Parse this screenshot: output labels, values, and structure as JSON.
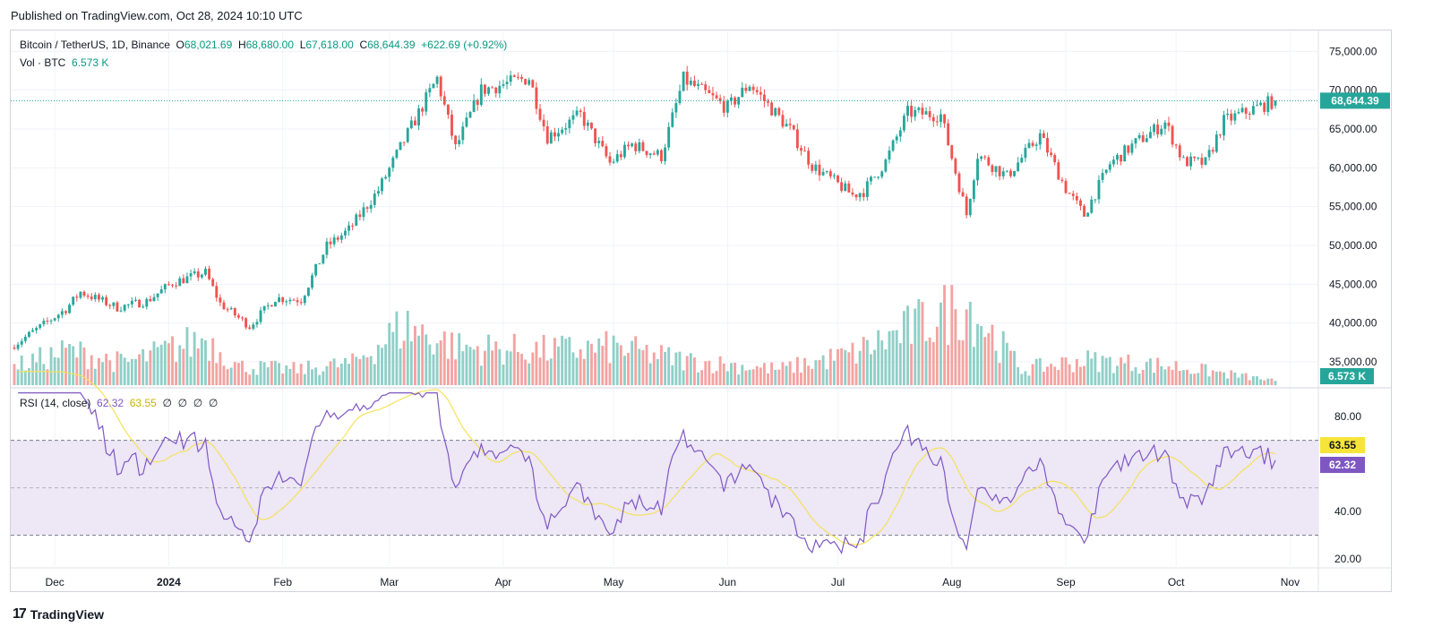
{
  "header": {
    "published": "Published on TradingView.com, Oct 28, 2024 10:10 UTC"
  },
  "legend": {
    "symbol": "Bitcoin / TetherUS, 1D, Binance",
    "open_label": "O",
    "open": "68,021.69",
    "high_label": "H",
    "high": "68,680.00",
    "low_label": "L",
    "low": "67,618.00",
    "close_label": "C",
    "close": "68,644.39",
    "change": "+622.69 (+0.92%)",
    "vol_label": "Vol · BTC",
    "vol_value": "6.573 K",
    "rsi_label": "RSI (14, close)",
    "rsi_value": "62.32",
    "rsi_ma_value": "63.55",
    "rsi_extra": [
      "∅",
      "∅",
      "∅",
      "∅"
    ]
  },
  "footer": {
    "brand": "TradingView",
    "logo_text": "17"
  },
  "colors": {
    "up": "#26a69a",
    "down": "#ef5350",
    "vol_up": "#8fcfc7",
    "vol_down": "#f3a3a1",
    "rsi": "#7e57c2",
    "rsi_ma": "#f5e25a",
    "rsi_band": "#ede7f6"
  },
  "chart_data": [
    {
      "type": "candlestick",
      "title": "Bitcoin / TetherUS, 1D, Binance",
      "x_tick_labels": [
        "Dec",
        "2024",
        "Feb",
        "Mar",
        "Apr",
        "May",
        "Jun",
        "Jul",
        "Aug",
        "Sep",
        "Oct",
        "Nov"
      ],
      "y_tick_labels": [
        "35,000.00",
        "40,000.00",
        "45,000.00",
        "50,000.00",
        "55,000.00",
        "60,000.00",
        "65,000.00",
        "70,000.00",
        "75,000.00"
      ],
      "ylim": [
        32000,
        77000
      ],
      "last_price": "68,644.39",
      "x_range": [
        "2023-11-20",
        "2024-10-28"
      ],
      "price_anchors": [
        [
          "2023-11-20",
          37200
        ],
        [
          "2023-12-04",
          41800
        ],
        [
          "2023-12-08",
          44000
        ],
        [
          "2023-12-18",
          42000
        ],
        [
          "2023-12-26",
          42800
        ],
        [
          "2024-01-02",
          45200
        ],
        [
          "2024-01-11",
          46500
        ],
        [
          "2024-01-15",
          42500
        ],
        [
          "2024-01-23",
          39600
        ],
        [
          "2024-01-30",
          43200
        ],
        [
          "2024-02-06",
          43000
        ],
        [
          "2024-02-13",
          49900
        ],
        [
          "2024-02-19",
          52000
        ],
        [
          "2024-02-27",
          57100
        ],
        [
          "2024-03-05",
          63500
        ],
        [
          "2024-03-14",
          71500
        ],
        [
          "2024-03-19",
          62500
        ],
        [
          "2024-03-26",
          70000
        ],
        [
          "2024-04-08",
          71600
        ],
        [
          "2024-04-13",
          64000
        ],
        [
          "2024-04-22",
          66800
        ],
        [
          "2024-04-30",
          60600
        ],
        [
          "2024-05-06",
          63000
        ],
        [
          "2024-05-14",
          61500
        ],
        [
          "2024-05-20",
          71400
        ],
        [
          "2024-06-01",
          67700
        ],
        [
          "2024-06-07",
          70800
        ],
        [
          "2024-06-18",
          64900
        ],
        [
          "2024-06-24",
          60300
        ],
        [
          "2024-07-05",
          56500
        ],
        [
          "2024-07-08",
          57000
        ],
        [
          "2024-07-14",
          60800
        ],
        [
          "2024-07-20",
          67100
        ],
        [
          "2024-07-29",
          66800
        ],
        [
          "2024-08-05",
          54000
        ],
        [
          "2024-08-08",
          61700
        ],
        [
          "2024-08-16",
          58900
        ],
        [
          "2024-08-25",
          64200
        ],
        [
          "2024-09-01",
          57300
        ],
        [
          "2024-09-06",
          53900
        ],
        [
          "2024-09-13",
          60500
        ],
        [
          "2024-09-20",
          63200
        ],
        [
          "2024-09-28",
          65800
        ],
        [
          "2024-10-03",
          60800
        ],
        [
          "2024-10-09",
          60600
        ],
        [
          "2024-10-14",
          66000
        ],
        [
          "2024-10-21",
          67400
        ],
        [
          "2024-10-28",
          68644
        ]
      ],
      "volume_anchors_k": [
        [
          "2023-11-20",
          30
        ],
        [
          "2023-12-05",
          55
        ],
        [
          "2023-12-20",
          35
        ],
        [
          "2024-01-03",
          60
        ],
        [
          "2024-01-11",
          75
        ],
        [
          "2024-01-20",
          30
        ],
        [
          "2024-02-05",
          25
        ],
        [
          "2024-02-20",
          35
        ],
        [
          "2024-03-05",
          95
        ],
        [
          "2024-03-20",
          60
        ],
        [
          "2024-04-13",
          55
        ],
        [
          "2024-05-01",
          60
        ],
        [
          "2024-05-20",
          40
        ],
        [
          "2024-06-15",
          25
        ],
        [
          "2024-07-05",
          50
        ],
        [
          "2024-08-05",
          130
        ],
        [
          "2024-08-20",
          25
        ],
        [
          "2024-09-06",
          40
        ],
        [
          "2024-10-01",
          30
        ],
        [
          "2024-10-28",
          6.573
        ]
      ]
    },
    {
      "type": "line",
      "title": "RSI (14, close)",
      "y_tick_labels": [
        "20.00",
        "40.00",
        "80.00"
      ],
      "ylim": [
        17,
        91
      ],
      "bands": [
        30,
        50,
        70
      ],
      "series": [
        {
          "name": "RSI",
          "last": "62.32"
        },
        {
          "name": "RSI-based MA",
          "last": "63.55"
        }
      ]
    }
  ]
}
